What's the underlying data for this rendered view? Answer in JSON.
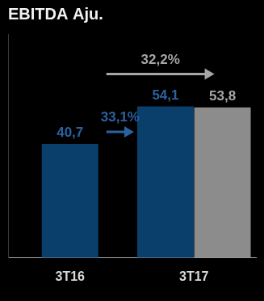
{
  "chart_data": {
    "type": "bar",
    "title": "EBITDA Aju.",
    "categories": [
      "3T16",
      "3T17"
    ],
    "series": [
      {
        "color": "#0b3f6b",
        "values": [
          40.7,
          54.1
        ],
        "value_labels": [
          "40,7",
          "54,1"
        ]
      },
      {
        "color": "#8c8c8c",
        "values": [
          null,
          53.8
        ],
        "value_labels": [
          null,
          "53,8"
        ]
      }
    ],
    "annotations": [
      "32,2%",
      "33,1%"
    ],
    "ylim": [
      0,
      80
    ],
    "yticks": [
      0
    ],
    "grid": false,
    "data_labels": true,
    "tick_labels": "x"
  }
}
